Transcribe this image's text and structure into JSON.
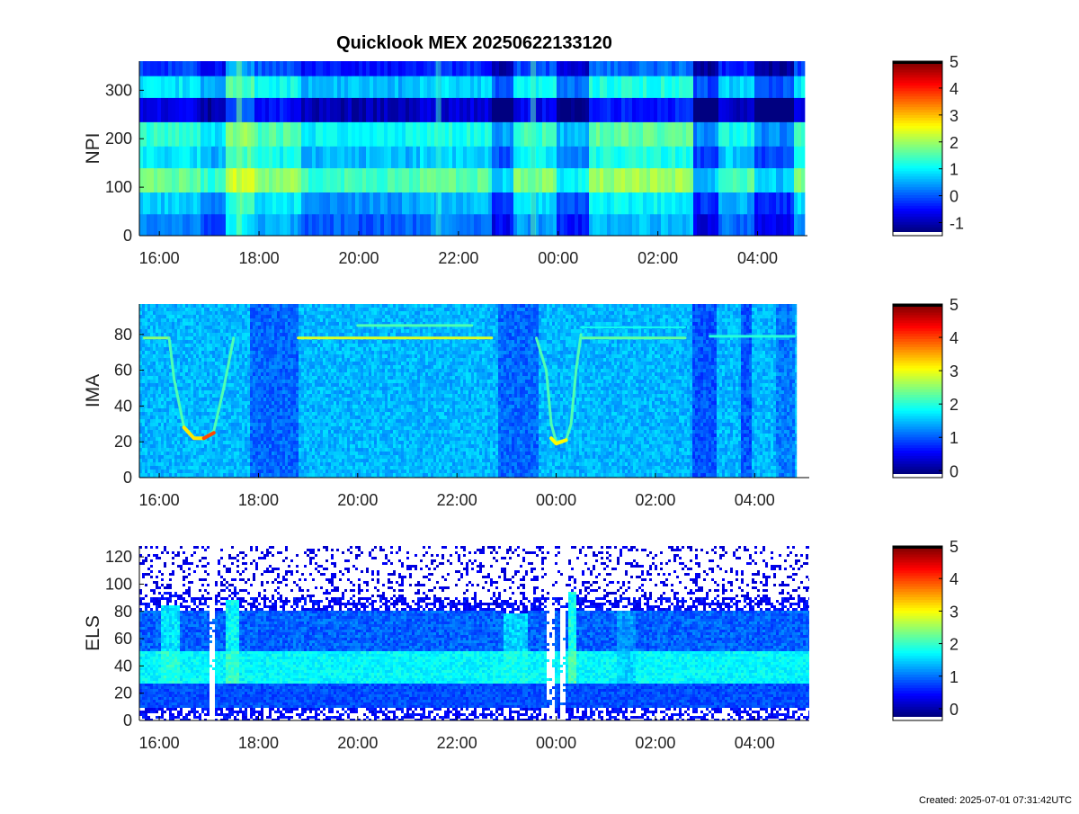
{
  "figure": {
    "title": "Quicklook MEX 20250622133120",
    "footer": "Created: 2025-07-01 07:31:42UTC"
  },
  "chart_data": [
    {
      "type": "heatmap",
      "name": "npi",
      "ylabel": "NPI",
      "xlabel": "",
      "x_ticks": [
        "16:00",
        "18:00",
        "20:00",
        "22:00",
        "00:00",
        "02:00",
        "04:00"
      ],
      "x_tick_hours": [
        16,
        18,
        20,
        22,
        24,
        26,
        28
      ],
      "xlim": [
        15.6,
        29.0
      ],
      "data_x_end": 28.95,
      "y_ticks": [
        0,
        100,
        200,
        300
      ],
      "ylim": [
        0,
        360
      ],
      "colorbar": {
        "ticks": [
          -1,
          0,
          1,
          2,
          3,
          4,
          5
        ],
        "range": [
          -1.35,
          5
        ],
        "has_white_floor": true,
        "colormap": "jet"
      },
      "value_bands": [
        {
          "y": [
            0,
            45
          ],
          "level": 0.3
        },
        {
          "y": [
            45,
            90
          ],
          "level": 0.7
        },
        {
          "y": [
            90,
            140
          ],
          "level": 1.7
        },
        {
          "y": [
            140,
            185
          ],
          "level": 0.9
        },
        {
          "y": [
            185,
            235
          ],
          "level": 1.3
        },
        {
          "y": [
            235,
            285
          ],
          "level": -0.7
        },
        {
          "y": [
            285,
            330
          ],
          "level": 0.9
        },
        {
          "y": [
            330,
            360
          ],
          "level": -0.2
        }
      ],
      "time_modulation": [
        {
          "x": [
            15.6,
            16.8
          ],
          "delta": 0
        },
        {
          "x": [
            16.8,
            17.3
          ],
          "delta": -0.4
        },
        {
          "x": [
            17.3,
            17.9
          ],
          "delta": 0.6
        },
        {
          "x": [
            17.9,
            18.8
          ],
          "delta": 0.2
        },
        {
          "x": [
            18.8,
            21.2
          ],
          "delta": -0.3
        },
        {
          "x": [
            21.2,
            22.6
          ],
          "delta": -0.1
        },
        {
          "x": [
            22.6,
            23.1
          ],
          "delta": -0.9
        },
        {
          "x": [
            23.1,
            23.9
          ],
          "delta": 0.1
        },
        {
          "x": [
            23.9,
            24.6
          ],
          "delta": -0.7
        },
        {
          "x": [
            24.6,
            26.7
          ],
          "delta": 0.3
        },
        {
          "x": [
            26.7,
            27.2
          ],
          "delta": -1.0
        },
        {
          "x": [
            27.2,
            27.9
          ],
          "delta": -0.2
        },
        {
          "x": [
            27.9,
            28.7
          ],
          "delta": -1.0
        },
        {
          "x": [
            28.7,
            29.0
          ],
          "delta": 0.1
        }
      ]
    },
    {
      "type": "heatmap",
      "name": "ima",
      "ylabel": "IMA",
      "xlabel": "",
      "x_ticks": [
        "16:00",
        "18:00",
        "20:00",
        "22:00",
        "00:00",
        "02:00",
        "04:00"
      ],
      "x_tick_hours": [
        16,
        18,
        20,
        22,
        24,
        26,
        28
      ],
      "xlim": [
        15.6,
        29.1
      ],
      "data_x_end": 28.85,
      "y_ticks": [
        0,
        20,
        40,
        60,
        80
      ],
      "ylim": [
        0,
        97
      ],
      "colorbar": {
        "ticks": [
          0,
          1,
          2,
          3,
          4,
          5
        ],
        "range": [
          -0.1,
          5
        ],
        "has_white_floor": true,
        "colormap": "jet"
      },
      "background_level": 1.45,
      "time_modulation": [
        {
          "x": [
            17.8,
            18.8
          ],
          "delta": -0.4
        },
        {
          "x": [
            22.8,
            23.6
          ],
          "delta": -0.4
        },
        {
          "x": [
            26.7,
            27.2
          ],
          "delta": -0.5
        },
        {
          "x": [
            27.7,
            27.9
          ],
          "delta": -0.5
        },
        {
          "x": [
            28.4,
            28.8
          ],
          "delta": -0.3
        }
      ],
      "features": [
        {
          "kind": "line",
          "points": [
            [
              18.8,
              78
            ],
            [
              22.7,
              78
            ]
          ],
          "level": 2.9,
          "width": 3
        },
        {
          "kind": "line",
          "points": [
            [
              20.0,
              85
            ],
            [
              22.3,
              85
            ]
          ],
          "level": 2.2,
          "width": 3
        },
        {
          "kind": "line",
          "points": [
            [
              24.5,
              78
            ],
            [
              26.6,
              78
            ]
          ],
          "level": 2.3,
          "width": 3
        },
        {
          "kind": "line",
          "points": [
            [
              24.5,
              84
            ],
            [
              26.6,
              84
            ]
          ],
          "level": 1.9,
          "width": 2
        },
        {
          "kind": "line",
          "points": [
            [
              15.7,
              78
            ],
            [
              16.2,
              78
            ]
          ],
          "level": 2.5,
          "width": 3
        },
        {
          "kind": "line",
          "points": [
            [
              27.1,
              79
            ],
            [
              28.8,
              79
            ]
          ],
          "level": 2.0,
          "width": 3
        },
        {
          "kind": "line",
          "points": [
            [
              16.2,
              78
            ],
            [
              16.3,
              55
            ],
            [
              16.5,
              28
            ],
            [
              16.7,
              22
            ],
            [
              16.9,
              22
            ],
            [
              17.1,
              26
            ],
            [
              17.3,
              50
            ],
            [
              17.5,
              78
            ]
          ],
          "level": 2.2,
          "width": 3
        },
        {
          "kind": "line",
          "points": [
            [
              16.5,
              28
            ],
            [
              16.7,
              22
            ],
            [
              16.9,
              22
            ]
          ],
          "level": 3.2,
          "width": 4
        },
        {
          "kind": "line",
          "points": [
            [
              16.9,
              22
            ],
            [
              17.1,
              25
            ]
          ],
          "level": 4.0,
          "width": 4
        },
        {
          "kind": "line",
          "points": [
            [
              23.6,
              78
            ],
            [
              23.8,
              60
            ],
            [
              23.9,
              30
            ],
            [
              24.0,
              20
            ],
            [
              24.2,
              21
            ],
            [
              24.3,
              30
            ],
            [
              24.4,
              60
            ],
            [
              24.5,
              80
            ]
          ],
          "level": 2.2,
          "width": 3
        },
        {
          "kind": "line",
          "points": [
            [
              23.9,
              22
            ],
            [
              24.0,
              19
            ],
            [
              24.2,
              21
            ]
          ],
          "level": 3.1,
          "width": 4
        }
      ]
    },
    {
      "type": "heatmap",
      "name": "els",
      "ylabel": "ELS",
      "xlabel": "",
      "x_ticks": [
        "16:00",
        "18:00",
        "20:00",
        "22:00",
        "00:00",
        "02:00",
        "04:00"
      ],
      "x_tick_hours": [
        16,
        18,
        20,
        22,
        24,
        26,
        28
      ],
      "xlim": [
        15.6,
        29.1
      ],
      "data_x_end": 29.1,
      "y_ticks": [
        0,
        20,
        40,
        60,
        80,
        100,
        120
      ],
      "ylim": [
        0,
        128
      ],
      "colorbar": {
        "ticks": [
          0,
          1,
          2,
          3,
          4,
          5
        ],
        "range": [
          -0.25,
          5
        ],
        "has_white_floor": true,
        "colormap": "jet"
      },
      "core": {
        "y": [
          28,
          52
        ],
        "level": 1.7
      },
      "upper_edge": 82,
      "sparse_above": 95,
      "bursts": [
        {
          "x": [
            16.0,
            16.4
          ],
          "y_top": 85,
          "level": 1.9
        },
        {
          "x": [
            17.3,
            17.6
          ],
          "y_top": 90,
          "level": 2.0
        },
        {
          "x": [
            22.9,
            23.4
          ],
          "y_top": 80,
          "level": 1.8
        },
        {
          "x": [
            24.2,
            24.4
          ],
          "y_top": 96,
          "level": 2.1
        },
        {
          "x": [
            25.2,
            25.6
          ],
          "y_top": 82,
          "level": 1.5
        }
      ],
      "gaps": [
        {
          "x": [
            17.0,
            17.1
          ]
        },
        {
          "x": [
            23.8,
            23.95
          ]
        },
        {
          "x": [
            24.05,
            24.15
          ]
        }
      ]
    }
  ]
}
